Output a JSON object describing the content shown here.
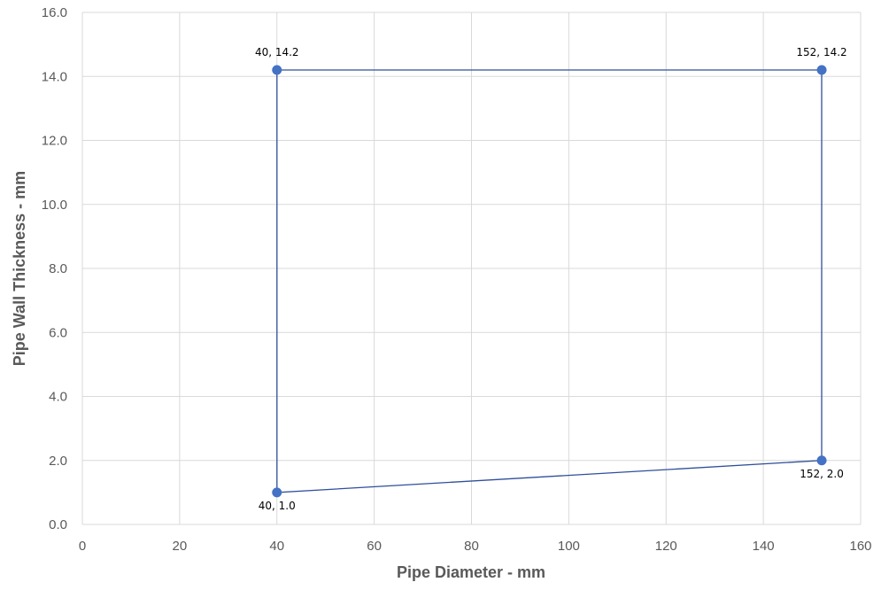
{
  "chart_data": {
    "type": "scatter",
    "xlabel": "Pipe Diameter - mm",
    "ylabel": "Pipe Wall Thickness - mm",
    "xlim": [
      0,
      160
    ],
    "ylim": [
      0,
      16
    ],
    "x_ticks": [
      "0",
      "20",
      "40",
      "60",
      "80",
      "100",
      "120",
      "140",
      "160"
    ],
    "y_ticks": [
      "0.0",
      "2.0",
      "4.0",
      "6.0",
      "8.0",
      "10.0",
      "12.0",
      "14.0",
      "16.0"
    ],
    "grid": true,
    "connected": true,
    "closed": true,
    "series": [
      {
        "points": [
          {
            "x": 40,
            "y": 14.2,
            "label": "40, 14.2"
          },
          {
            "x": 152,
            "y": 14.2,
            "label": "152, 14.2"
          },
          {
            "x": 152,
            "y": 2.0,
            "label": "152, 2.0"
          },
          {
            "x": 40,
            "y": 1.0,
            "label": "40, 1.0"
          }
        ]
      }
    ],
    "colors": {
      "line": "#2f4f9a",
      "marker": "#4472c4",
      "grid": "#d9d9d9",
      "text": "#595959"
    }
  }
}
